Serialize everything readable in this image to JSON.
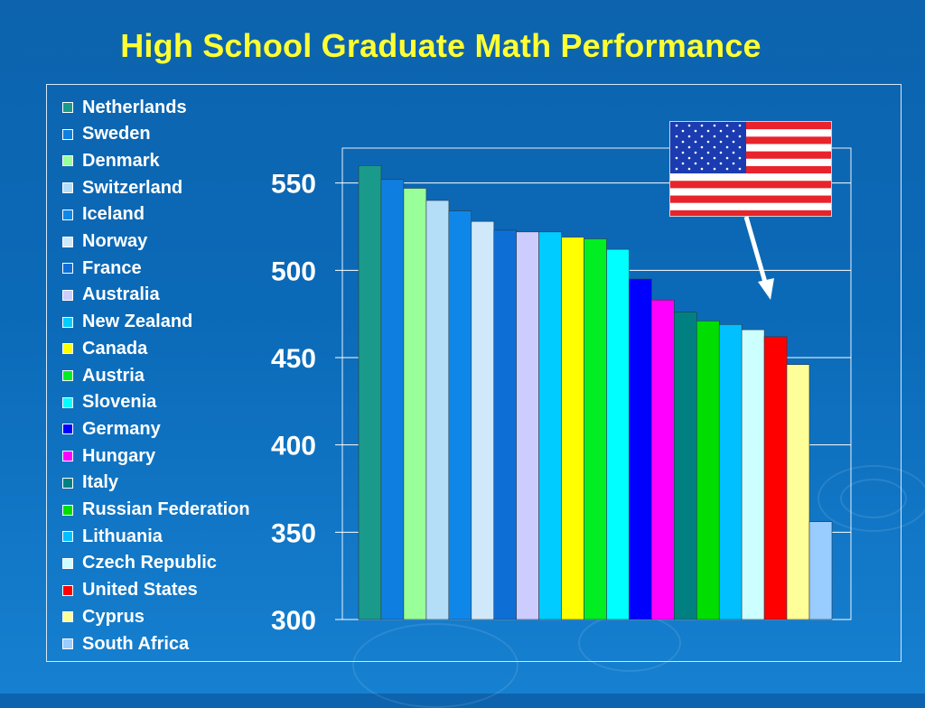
{
  "slide": {
    "title": "High School Graduate Math Performance"
  },
  "colors": {
    "background": "#0d63ad",
    "title": "#ffff33",
    "text": "#ffffff",
    "grid": "#ffffff"
  },
  "flag": {
    "name": "us-flag-icon"
  },
  "chart_data": {
    "type": "bar",
    "title": "High School Graduate Math Performance",
    "xlabel": "",
    "ylabel": "",
    "ylim": [
      300,
      570
    ],
    "yticks": [
      300,
      350,
      400,
      450,
      500,
      550
    ],
    "grid": true,
    "legend_placement": "left",
    "categories": [
      "Netherlands",
      "Sweden",
      "Denmark",
      "Switzerland",
      "Iceland",
      "Norway",
      "France",
      "Australia",
      "New Zealand",
      "Canada",
      "Austria",
      "Slovenia",
      "Germany",
      "Hungary",
      "Italy",
      "Russian Federation",
      "Lithuania",
      "Czech Republic",
      "United States",
      "Cyprus",
      "South Africa"
    ],
    "values": [
      560,
      552,
      547,
      540,
      534,
      528,
      523,
      522,
      522,
      519,
      518,
      512,
      495,
      483,
      476,
      471,
      469,
      466,
      462,
      446,
      356
    ],
    "bar_colors": [
      "#1a9a8a",
      "#0e7fe0",
      "#99ff99",
      "#b4def8",
      "#0f87e8",
      "#cfe9fb",
      "#0d6fd6",
      "#ccccff",
      "#00ccff",
      "#ffff00",
      "#00ee22",
      "#00ffff",
      "#0000ff",
      "#ff00ff",
      "#008080",
      "#00dd00",
      "#00c0ff",
      "#ccffff",
      "#ff0000",
      "#ffff99",
      "#99ccff"
    ]
  }
}
